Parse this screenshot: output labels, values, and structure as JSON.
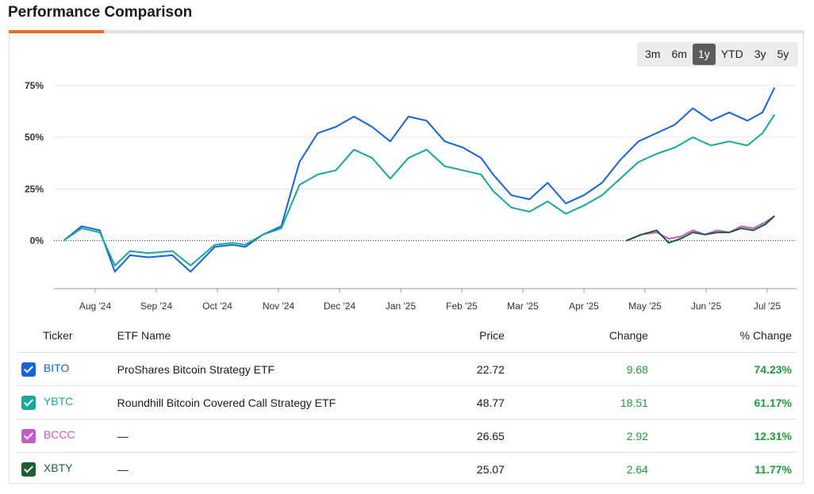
{
  "title": "Performance Comparison",
  "ranges": [
    {
      "label": "3m",
      "active": false
    },
    {
      "label": "6m",
      "active": false
    },
    {
      "label": "1y",
      "active": true
    },
    {
      "label": "YTD",
      "active": false
    },
    {
      "label": "3y",
      "active": false
    },
    {
      "label": "5y",
      "active": false
    }
  ],
  "table": {
    "headers": {
      "ticker": "Ticker",
      "name": "ETF Name",
      "price": "Price",
      "change": "Change",
      "pct": "% Change"
    },
    "rows": [
      {
        "ticker": "BITO",
        "name": "ProShares Bitcoin Strategy ETF",
        "price": "22.72",
        "change": "9.68",
        "pct": "74.23%",
        "color": "#1565d8"
      },
      {
        "ticker": "YBTC",
        "name": "Roundhill Bitcoin Covered Call Strategy ETF",
        "price": "48.77",
        "change": "18.51",
        "pct": "61.17%",
        "color": "#17a89a"
      },
      {
        "ticker": "BCCC",
        "name": "—",
        "price": "26.65",
        "change": "2.92",
        "pct": "12.31%",
        "color": "#c45cc8"
      },
      {
        "ticker": "XBTY",
        "name": "—",
        "price": "25.07",
        "change": "2.64",
        "pct": "11.77%",
        "color": "#1b5e32"
      }
    ]
  },
  "chart_data": {
    "type": "line",
    "x_ticks": [
      "Aug '24",
      "Sep '24",
      "Oct '24",
      "Nov '24",
      "Dec '24",
      "Jan '25",
      "Feb '25",
      "Mar '25",
      "Apr '25",
      "May '25",
      "Jun '25",
      "Jul '25"
    ],
    "y_ticks": [
      "75%",
      "50%",
      "25%",
      "0%"
    ],
    "ylim": [
      -22,
      78
    ],
    "x_domain": [
      0,
      12
    ],
    "baseline": 0,
    "series": [
      {
        "name": "BITO",
        "color": "#1565d8",
        "x": [
          0,
          0.3,
          0.6,
          0.85,
          1.1,
          1.4,
          1.8,
          2.1,
          2.5,
          2.8,
          3.0,
          3.3,
          3.6,
          3.9,
          4.2,
          4.5,
          4.8,
          5.1,
          5.4,
          5.7,
          6.0,
          6.3,
          6.6,
          6.9,
          7.1,
          7.4,
          7.7,
          8.0,
          8.3,
          8.6,
          8.9,
          9.2,
          9.5,
          9.8,
          10.1,
          10.4,
          10.7,
          11.0,
          11.3,
          11.55,
          11.75
        ],
        "values": [
          0,
          7,
          5,
          -15,
          -7,
          -8,
          -7,
          -15,
          -3,
          -2,
          -3,
          3,
          7,
          38,
          52,
          55,
          60,
          55,
          48,
          60,
          58,
          48,
          45,
          40,
          32,
          22,
          20,
          28,
          18,
          22,
          28,
          39,
          48,
          52,
          56,
          64,
          58,
          62,
          58,
          62,
          74
        ]
      },
      {
        "name": "YBTC",
        "color": "#17a89a",
        "x": [
          0,
          0.3,
          0.6,
          0.85,
          1.1,
          1.4,
          1.8,
          2.1,
          2.5,
          2.8,
          3.0,
          3.3,
          3.6,
          3.9,
          4.2,
          4.5,
          4.8,
          5.1,
          5.4,
          5.7,
          6.0,
          6.3,
          6.6,
          6.9,
          7.1,
          7.4,
          7.7,
          8.0,
          8.3,
          8.6,
          8.9,
          9.2,
          9.5,
          9.8,
          10.1,
          10.4,
          10.7,
          11.0,
          11.3,
          11.55,
          11.75
        ],
        "values": [
          0,
          6,
          4,
          -12,
          -5,
          -6,
          -5,
          -12,
          -2,
          -1,
          -2,
          3,
          6,
          27,
          32,
          34,
          44,
          40,
          30,
          40,
          44,
          36,
          34,
          32,
          24,
          16,
          14,
          19,
          13,
          17,
          22,
          30,
          38,
          42,
          45,
          50,
          46,
          48,
          46,
          52,
          61
        ]
      },
      {
        "name": "BCCC",
        "color": "#c45cc8",
        "x": [
          9.3,
          9.55,
          9.8,
          10.0,
          10.2,
          10.4,
          10.6,
          10.8,
          11.0,
          11.2,
          11.4,
          11.6,
          11.75
        ],
        "values": [
          0,
          3,
          4,
          1,
          2,
          5,
          3,
          5,
          4,
          7,
          6,
          9,
          12
        ]
      },
      {
        "name": "XBTY",
        "color": "#1b5e32",
        "x": [
          9.3,
          9.55,
          9.8,
          10.0,
          10.2,
          10.4,
          10.6,
          10.8,
          11.0,
          11.2,
          11.4,
          11.6,
          11.75
        ],
        "values": [
          0,
          3,
          5,
          -1,
          1,
          4,
          3,
          4,
          4,
          6,
          5,
          8,
          12
        ]
      }
    ]
  }
}
